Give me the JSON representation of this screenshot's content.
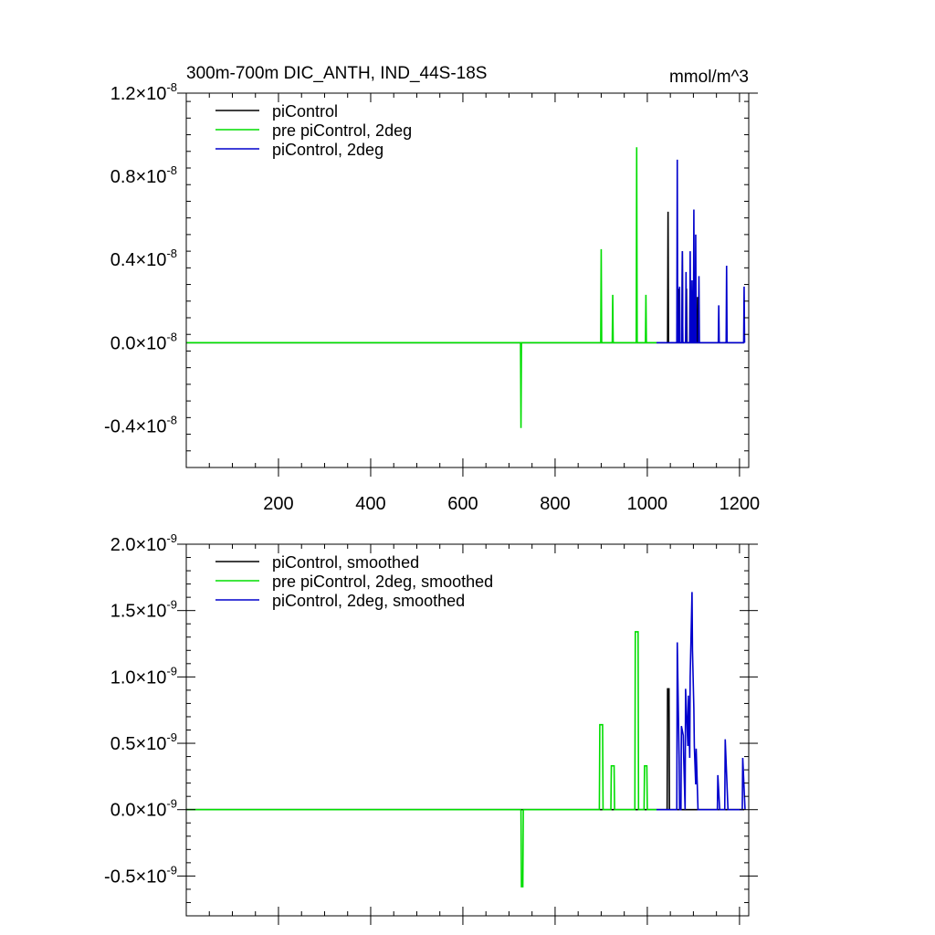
{
  "chart_data": [
    {
      "type": "line",
      "title": "300m-700m DIC_ANTH, IND_44S-18S",
      "units": "mmol/m^3",
      "xlim": [
        0,
        1220
      ],
      "ylim": [
        -6e-09,
        1.2e-08
      ],
      "xticks": [
        200,
        400,
        600,
        800,
        1000,
        1200
      ],
      "xtick_labels": [
        "200",
        "400",
        "600",
        "800",
        "1000",
        "1200"
      ],
      "show_xtick_labels": true,
      "yticks": [
        -4e-09,
        0,
        4e-09,
        8e-09,
        1.2e-08
      ],
      "ytick_labels": [
        {
          "mant": "-0.4",
          "exp": "-8"
        },
        {
          "mant": "0.0",
          "exp": "-8"
        },
        {
          "mant": "0.4",
          "exp": "-8"
        },
        {
          "mant": "0.8",
          "exp": "-8"
        },
        {
          "mant": "1.2",
          "exp": "-8"
        }
      ],
      "legend_position": "top-left",
      "grid": false,
      "series": [
        {
          "name": "piControl",
          "color": "#000000",
          "x": [
            0,
            1044,
            1045,
            1046,
            1066,
            1067,
            1068,
            1075,
            1076,
            1077,
            1084,
            1085,
            1086,
            1092,
            1093,
            1094,
            1101,
            1102,
            1103,
            1108,
            1109,
            1110,
            1210
          ],
          "y": [
            0,
            0,
            6.3e-09,
            0,
            0,
            2.6e-09,
            0,
            0,
            4.4e-09,
            0,
            0,
            2.6e-09,
            0,
            0,
            3e-09,
            0,
            0,
            2.6e-09,
            0,
            0,
            2.2e-09,
            0,
            0
          ]
        },
        {
          "name": "pre piControl, 2deg",
          "color": "#00dd00",
          "x": [
            0,
            725,
            726,
            727,
            899,
            900,
            901,
            924,
            925,
            926,
            976,
            977,
            978,
            996,
            997,
            998,
            1020
          ],
          "y": [
            0,
            0,
            -4.1e-09,
            0,
            0,
            4.5e-09,
            0,
            0,
            2.3e-09,
            0,
            0,
            9.4e-09,
            0,
            0,
            2.3e-09,
            0,
            0
          ]
        },
        {
          "name": "piControl, 2deg",
          "color": "#0000cc",
          "x": [
            1020,
            1064,
            1065,
            1066,
            1069,
            1070,
            1071,
            1075,
            1076,
            1077,
            1083,
            1084,
            1085,
            1092,
            1093,
            1094,
            1096,
            1097,
            1098,
            1100,
            1101,
            1102,
            1104,
            1105,
            1106,
            1111,
            1112,
            1113,
            1154,
            1155,
            1156,
            1171,
            1172,
            1173,
            1209,
            1210,
            1211
          ],
          "y": [
            0,
            0,
            8.8e-09,
            0,
            0,
            2.7e-09,
            0,
            0,
            4.4e-09,
            0,
            0,
            3.4e-09,
            0,
            0,
            4.4e-09,
            0,
            0,
            3e-09,
            0,
            0,
            6.4e-09,
            0,
            0,
            5.2e-09,
            0,
            0,
            3.2e-09,
            0,
            0,
            1.8e-09,
            0,
            0,
            3.7e-09,
            0,
            0,
            2.7e-09,
            0
          ]
        }
      ]
    },
    {
      "type": "line",
      "title": "",
      "xlim": [
        0,
        1220
      ],
      "ylim": [
        -8e-10,
        2e-09
      ],
      "xticks": [
        200,
        400,
        600,
        800,
        1000,
        1200
      ],
      "xtick_labels": [],
      "show_xtick_labels": false,
      "yticks": [
        -5e-10,
        0,
        5e-10,
        1e-09,
        1.5e-09,
        2e-09
      ],
      "ytick_labels": [
        {
          "mant": "-0.5",
          "exp": "-9"
        },
        {
          "mant": "0.0",
          "exp": "-9"
        },
        {
          "mant": "0.5",
          "exp": "-9"
        },
        {
          "mant": "1.0",
          "exp": "-9"
        },
        {
          "mant": "1.5",
          "exp": "-9"
        },
        {
          "mant": "2.0",
          "exp": "-9"
        }
      ],
      "legend_position": "top-left",
      "grid": false,
      "series": [
        {
          "name": "piControl, smoothed",
          "color": "#000000",
          "x": [
            0,
            1043,
            1044,
            1047,
            1048,
            1210
          ],
          "y": [
            0,
            0,
            9.1e-10,
            9.1e-10,
            0,
            0
          ]
        },
        {
          "name": "pre piControl, 2deg, smoothed",
          "color": "#00dd00",
          "x": [
            0,
            726,
            727,
            730,
            731,
            896,
            897,
            903,
            904,
            921,
            922,
            928,
            929,
            973,
            974,
            980,
            981,
            993,
            994,
            999,
            1000,
            1020
          ],
          "y": [
            0,
            0,
            -5.8e-10,
            -5.8e-10,
            0,
            0,
            6.4e-10,
            6.4e-10,
            0,
            0,
            3.3e-10,
            3.3e-10,
            0,
            0,
            1.34e-09,
            1.34e-09,
            0,
            0,
            3.3e-10,
            3.3e-10,
            0,
            0
          ]
        },
        {
          "name": "piControl, 2deg, smoothed",
          "color": "#0000cc",
          "x": [
            1020,
            1064,
            1065,
            1069,
            1070,
            1073,
            1074,
            1078,
            1079,
            1082,
            1083,
            1088,
            1089,
            1092,
            1093,
            1097,
            1098,
            1101,
            1102,
            1105,
            1106,
            1110,
            1111,
            1114,
            1152,
            1153,
            1157,
            1168,
            1169,
            1175,
            1206,
            1207,
            1212
          ],
          "y": [
            0,
            0,
            1.26e-09,
            3.9e-10,
            0,
            0,
            6.3e-10,
            5.6e-10,
            3.9e-10,
            0,
            9.1e-10,
            4.8e-10,
            8.6e-10,
            3.9e-10,
            1e-09,
            1.64e-09,
            1.2e-09,
            7.6e-10,
            4.8e-10,
            1.9e-10,
            4.6e-10,
            0,
            0,
            0,
            0,
            2.6e-10,
            0,
            0,
            5.3e-10,
            0,
            0,
            3.9e-10,
            0
          ]
        }
      ]
    }
  ]
}
